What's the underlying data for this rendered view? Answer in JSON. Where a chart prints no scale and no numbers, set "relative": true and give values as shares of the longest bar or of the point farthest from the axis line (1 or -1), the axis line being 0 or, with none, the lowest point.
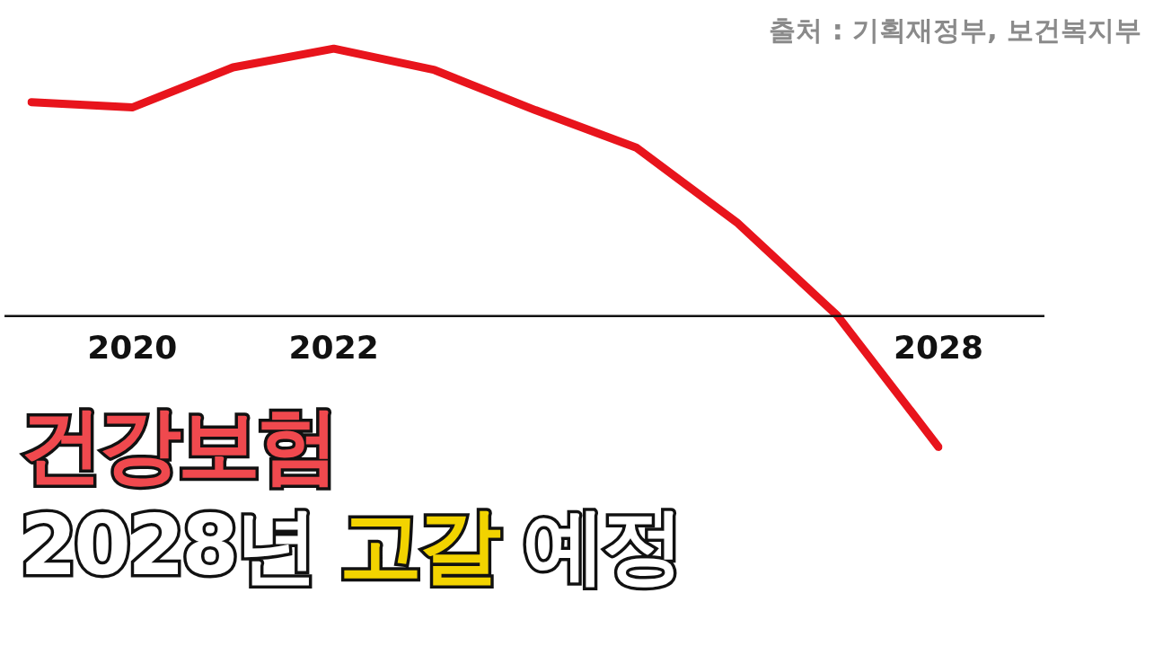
{
  "chart_data": {
    "type": "line",
    "title": "건강보험 2028년 고갈 예정",
    "relative": true,
    "categories": [
      null,
      "2020",
      null,
      "2022",
      null,
      null,
      null,
      null,
      null,
      "2028"
    ],
    "series": [
      {
        "color": "#e8141c",
        "values": [
          0.8,
          0.78,
          0.93,
          1.0,
          0.92,
          0.77,
          0.63,
          0.35,
          0.0,
          -0.49
        ]
      }
    ],
    "legend": false,
    "grid": false,
    "annotations": [
      "출처 : 기획재정부, 보건복지부"
    ]
  }
}
